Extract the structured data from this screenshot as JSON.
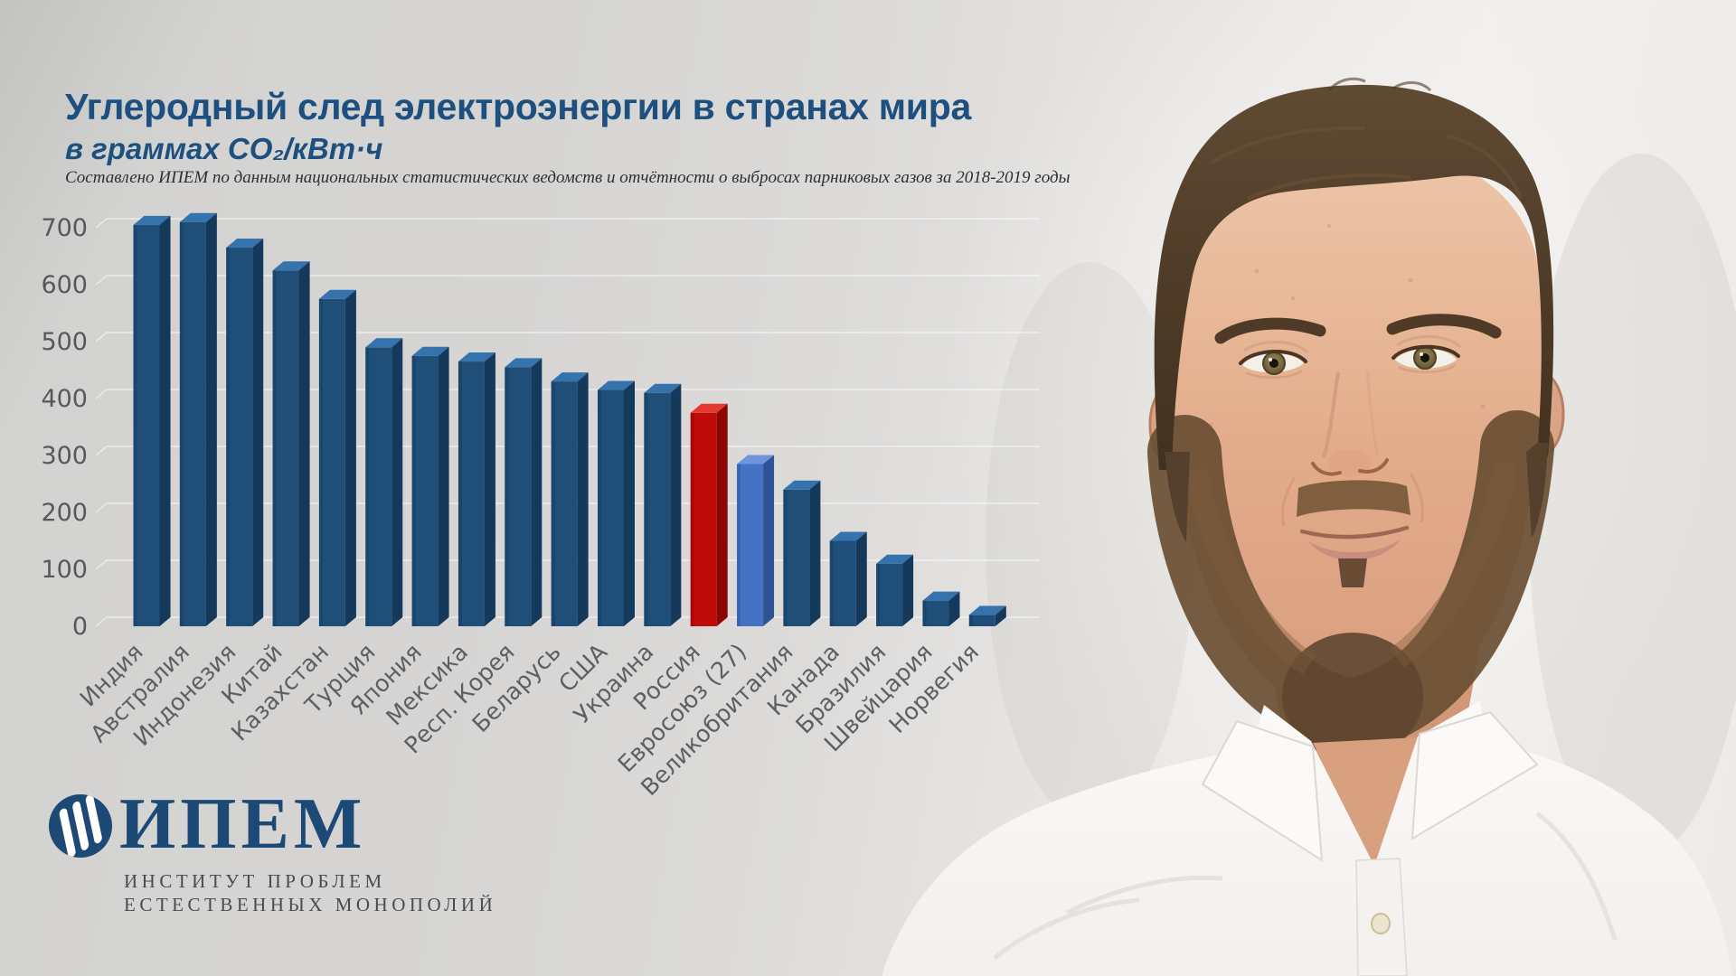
{
  "header": {
    "title": "Углеродный след электроэнергии в странах мира",
    "subtitle": "в граммах CO₂/кВт·ч",
    "source": "Составлено ИПЕМ по данным национальных статистических ведомств и отчётности о выбросах парниковых газов за 2018-2019 годы"
  },
  "chart_data": {
    "type": "bar",
    "title": "Углеродный след электроэнергии в странах мира",
    "ylabel": "г CO₂/кВт·ч",
    "ylim": [
      0,
      700
    ],
    "yticks": [
      0,
      100,
      200,
      300,
      400,
      500,
      600,
      700
    ],
    "grid": true,
    "legend": "none",
    "categories": [
      "Индия",
      "Австралия",
      "Индонезия",
      "Китай",
      "Казахстан",
      "Турция",
      "Япония",
      "Мексика",
      "Респ. Корея",
      "Беларусь",
      "США",
      "Украина",
      "Россия",
      "Евросоюз (27)",
      "Великобритания",
      "Канада",
      "Бразилия",
      "Швейцария",
      "Норвегия"
    ],
    "values": [
      705,
      710,
      665,
      625,
      575,
      490,
      475,
      465,
      455,
      430,
      415,
      410,
      375,
      285,
      240,
      150,
      110,
      45,
      20
    ],
    "bar_roles": [
      "default",
      "default",
      "default",
      "default",
      "default",
      "default",
      "default",
      "default",
      "default",
      "default",
      "default",
      "default",
      "russia",
      "eu",
      "default",
      "default",
      "default",
      "default",
      "default"
    ],
    "bar_palette": {
      "default": {
        "front": "#1F4E79",
        "top": "#3473AB",
        "side": "#15395A"
      },
      "russia": {
        "front": "#C00B0B",
        "top": "#E23A2E",
        "side": "#8C0606"
      },
      "eu": {
        "front": "#4472C4",
        "top": "#6E95DA",
        "side": "#2E5395"
      }
    },
    "tick_color": "#585858",
    "category_color": "#5f5f5f"
  },
  "colors": {
    "title_blue": "#1d507f",
    "logo_navy": "#1d4976",
    "wall_gray": "#d6d5d3"
  },
  "logo": {
    "name": "ИПЕМ",
    "caption_line1": "ИНСТИТУТ ПРОБЛЕМ",
    "caption_line2": "ЕСТЕСТВЕННЫХ МОНОПОЛИЙ"
  }
}
